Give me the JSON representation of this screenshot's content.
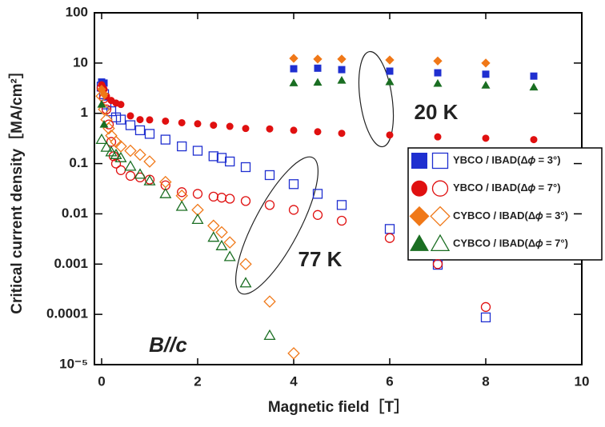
{
  "chart_data": {
    "type": "scatter",
    "xlabel": "Magnetic field［T］",
    "ylabel": "Critical current density［MA/cm²］",
    "xlim": [
      -0.15,
      10
    ],
    "xticks": [
      0,
      2,
      4,
      6,
      8,
      10
    ],
    "ylim": [
      1e-05,
      100
    ],
    "log_y": true,
    "yticks": [
      100,
      10,
      1,
      0.1,
      0.01,
      0.001,
      0.0001,
      {
        "value": 1e-05,
        "label": "10⁻⁵"
      }
    ],
    "legend": "right",
    "annotations": [
      "20 K",
      "77 K",
      "B//c"
    ],
    "series": [
      {
        "name": "YBCO / IBAD(Δ𝜙 = 3°)",
        "color": "#1f2fd0",
        "marker": "square",
        "filled": {
          "x": [
            0,
            0.05,
            4,
            4.5,
            5,
            6,
            7,
            8,
            9
          ],
          "values": [
            4.2,
            4.0,
            7.7,
            7.9,
            7.4,
            6.9,
            6.4,
            6.0,
            5.5
          ]
        },
        "open": {
          "x": [
            0,
            0.05,
            0.1,
            0.2,
            0.3,
            0.4,
            0.6,
            0.8,
            1,
            1.33,
            1.67,
            2,
            2.33,
            2.5,
            2.67,
            3,
            3.5,
            4,
            4.5,
            5,
            6,
            7,
            8
          ],
          "values": [
            3.4,
            2.4,
            1.5,
            1.1,
            0.83,
            0.75,
            0.58,
            0.46,
            0.39,
            0.3,
            0.22,
            0.18,
            0.14,
            0.13,
            0.11,
            0.085,
            0.059,
            0.039,
            0.025,
            0.015,
            0.005,
            0.00097,
            8.7e-05
          ]
        }
      },
      {
        "name": "YBCO / IBAD(Δ𝜙 = 7°)",
        "color": "#e01010",
        "marker": "circle",
        "filled": {
          "x": [
            0,
            0.05,
            0.1,
            0.2,
            0.3,
            0.4,
            0.6,
            0.8,
            1,
            1.33,
            1.67,
            2,
            2.33,
            2.67,
            3,
            3.5,
            4,
            4.5,
            5,
            6,
            7,
            8,
            9
          ],
          "values": [
            3.7,
            3.0,
            2.2,
            1.8,
            1.6,
            1.5,
            0.89,
            0.75,
            0.74,
            0.7,
            0.65,
            0.62,
            0.58,
            0.55,
            0.5,
            0.49,
            0.46,
            0.43,
            0.4,
            0.37,
            0.34,
            0.32,
            0.3
          ]
        },
        "open": {
          "x": [
            0,
            0.05,
            0.1,
            0.15,
            0.2,
            0.25,
            0.3,
            0.4,
            0.6,
            0.8,
            1,
            1.33,
            1.67,
            2,
            2.33,
            2.5,
            2.67,
            3,
            3.5,
            4,
            4.5,
            5,
            6,
            7,
            8
          ],
          "values": [
            3.2,
            2.0,
            1.2,
            0.6,
            0.27,
            0.14,
            0.1,
            0.074,
            0.057,
            0.053,
            0.048,
            0.037,
            0.027,
            0.025,
            0.022,
            0.021,
            0.02,
            0.018,
            0.015,
            0.012,
            0.0095,
            0.0073,
            0.0033,
            0.001,
            0.00014
          ]
        }
      },
      {
        "name": "CYBCO / IBAD(Δ𝜙 = 3°)",
        "color": "#f07818",
        "marker": "diamond",
        "filled": {
          "x": [
            0,
            0.05,
            4,
            4.5,
            5,
            6,
            7,
            8
          ],
          "values": [
            3.0,
            2.4,
            12.4,
            12,
            12,
            11.5,
            11,
            10
          ]
        },
        "open": {
          "x": [
            0,
            0.05,
            0.1,
            0.15,
            0.2,
            0.3,
            0.4,
            0.6,
            0.8,
            1,
            1.33,
            1.67,
            2,
            2.33,
            2.5,
            2.67,
            3,
            3.5,
            4
          ],
          "values": [
            2.2,
            1.2,
            0.75,
            0.5,
            0.36,
            0.27,
            0.22,
            0.18,
            0.15,
            0.11,
            0.043,
            0.023,
            0.012,
            0.0058,
            0.0043,
            0.0027,
            0.001,
            0.00018,
            1.68e-05
          ]
        }
      },
      {
        "name": "CYBCO / IBAD(Δ𝜙 = 7°)",
        "color": "#1a6e22",
        "marker": "triangle",
        "filled": {
          "x": [
            0,
            0.05,
            4,
            4.5,
            5,
            6,
            7,
            8,
            9
          ],
          "values": [
            1.5,
            0.6,
            4.0,
            4.1,
            4.5,
            4.2,
            3.9,
            3.6,
            3.3
          ]
        },
        "open": {
          "x": [
            0,
            0.1,
            0.2,
            0.3,
            0.4,
            0.6,
            0.8,
            1,
            1.33,
            1.67,
            2,
            2.33,
            2.5,
            2.67,
            3,
            3.5
          ],
          "values": [
            0.3,
            0.21,
            0.17,
            0.15,
            0.13,
            0.088,
            0.061,
            0.045,
            0.025,
            0.014,
            0.0077,
            0.0034,
            0.0023,
            0.0014,
            0.00042,
            3.8e-05
          ]
        }
      }
    ]
  }
}
